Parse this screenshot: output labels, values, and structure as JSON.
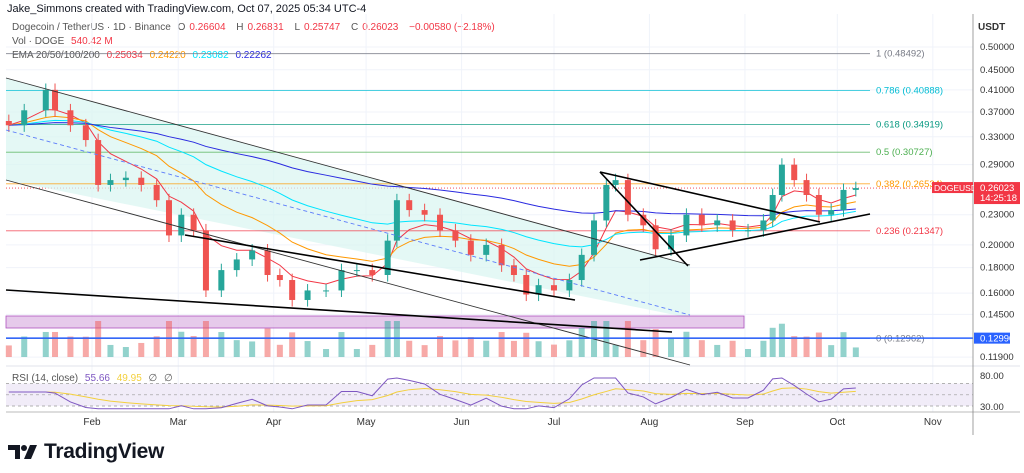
{
  "credit": "Jake_Simmons created with TradingView.com, Oct 07, 2025 05:34 UTC-4",
  "header": {
    "symbol": "Dogecoin / TetherUS · 1D · Binance",
    "o_label": "O",
    "o": "0.26604",
    "h_label": "H",
    "h": "0.26831",
    "l_label": "L",
    "l": "0.25747",
    "c_label": "C",
    "c": "0.26023",
    "change": "−0.00580 (−2.18%)",
    "vol_label": "Vol · DOGE",
    "vol": "540.42 M",
    "ema_label": "EMA 20/50/100/200",
    "ema_values": [
      "0.25034",
      "0.24220",
      "0.23082",
      "0.22262"
    ],
    "rsi_label": "RSI (14, close)",
    "rsi": "55.66",
    "rsi_ma": "49.95",
    "rsi_na1": "∅",
    "rsi_na2": "∅"
  },
  "colors": {
    "up": "#26a69a",
    "down": "#ef5350",
    "ema20": "#f23645",
    "ema50": "#ff9800",
    "ema100": "#00e5ff",
    "ema200": "#2a2ae0",
    "rsi": "#7e57c2",
    "rsi_ma": "#f3d03e",
    "price_badge": "#f23645",
    "line_badge": "#2962ff"
  },
  "price_axis": {
    "unit": "USDT",
    "scale": "log",
    "ticks": [
      "0.50000",
      "0.45000",
      "0.41000",
      "0.37000",
      "0.33000",
      "0.29000",
      "0.23000",
      "0.20000",
      "0.18000",
      "0.16000",
      "0.14500",
      "0.11900"
    ],
    "current_price": "0.26023",
    "countdown": "14:25:18",
    "symbol_tag": "DOGEUSDT",
    "horizontal_line": "0.12990"
  },
  "rsi_axis": {
    "ticks": [
      "80.00",
      "30.00"
    ]
  },
  "fib_levels": [
    {
      "label": "1 (0.48492)",
      "price": 0.48492,
      "color": "#787b86"
    },
    {
      "label": "0.786 (0.40888)",
      "price": 0.40888,
      "color": "#00bcd4"
    },
    {
      "label": "0.618 (0.34919)",
      "price": 0.34919,
      "color": "#089981"
    },
    {
      "label": "0.5 (0.30727)",
      "price": 0.30727,
      "color": "#4caf50"
    },
    {
      "label": "0.382 (0.26534)",
      "price": 0.26534,
      "color": "#ff9800"
    },
    {
      "label": "0.236 (0.21347)",
      "price": 0.21347,
      "color": "#f23645"
    },
    {
      "label": "0 (0.12962)",
      "price": 0.12962,
      "color": "#787b86"
    }
  ],
  "date_axis": [
    "Feb",
    "Mar",
    "Apr",
    "May",
    "Jun",
    "Jul",
    "Aug",
    "Sep",
    "Oct",
    "Nov"
  ],
  "chart_data": {
    "type": "candlestick",
    "y_scale": "log",
    "ylim": [
      0.115,
      0.52
    ],
    "x_ticks": [
      "Feb",
      "Mar",
      "Apr",
      "May",
      "Jun",
      "Jul",
      "Aug",
      "Sep",
      "Oct",
      "Nov"
    ],
    "series": [
      {
        "dates": [
          "2025-01-05",
          "2025-01-10",
          "2025-01-17",
          "2025-01-20",
          "2025-01-25",
          "2025-01-30",
          "2025-02-03",
          "2025-02-07",
          "2025-02-12",
          "2025-02-17",
          "2025-02-22",
          "2025-02-26",
          "2025-03-02",
          "2025-03-06",
          "2025-03-10",
          "2025-03-15",
          "2025-03-20",
          "2025-03-25",
          "2025-03-30",
          "2025-04-03",
          "2025-04-07",
          "2025-04-12",
          "2025-04-18",
          "2025-04-23",
          "2025-04-28",
          "2025-05-03",
          "2025-05-08",
          "2025-05-11",
          "2025-05-15",
          "2025-05-20",
          "2025-05-25",
          "2025-05-30",
          "2025-06-04",
          "2025-06-09",
          "2025-06-14",
          "2025-06-18",
          "2025-06-22",
          "2025-06-26",
          "2025-07-01",
          "2025-07-06",
          "2025-07-10",
          "2025-07-14",
          "2025-07-18",
          "2025-07-21",
          "2025-07-25",
          "2025-07-30",
          "2025-08-03",
          "2025-08-08",
          "2025-08-13",
          "2025-08-18",
          "2025-08-23",
          "2025-08-28",
          "2025-09-02",
          "2025-09-07",
          "2025-09-10",
          "2025-09-13",
          "2025-09-17",
          "2025-09-21",
          "2025-09-25",
          "2025-09-29",
          "2025-10-03",
          "2025-10-07"
        ],
        "close": [
          0.348,
          0.373,
          0.41,
          0.373,
          0.348,
          0.325,
          0.264,
          0.27,
          0.273,
          0.264,
          0.246,
          0.209,
          0.23,
          0.214,
          0.162,
          0.178,
          0.187,
          0.195,
          0.174,
          0.17,
          0.155,
          0.162,
          0.162,
          0.178,
          0.178,
          0.174,
          0.204,
          0.246,
          0.235,
          0.23,
          0.214,
          0.204,
          0.191,
          0.2,
          0.182,
          0.174,
          0.159,
          0.166,
          0.162,
          0.17,
          0.191,
          0.224,
          0.264,
          0.27,
          0.23,
          0.219,
          0.196,
          0.209,
          0.23,
          0.219,
          0.224,
          0.214,
          0.214,
          0.224,
          0.252,
          0.29,
          0.27,
          0.252,
          0.23,
          0.235,
          0.258,
          0.26023
        ]
      }
    ]
  }
}
